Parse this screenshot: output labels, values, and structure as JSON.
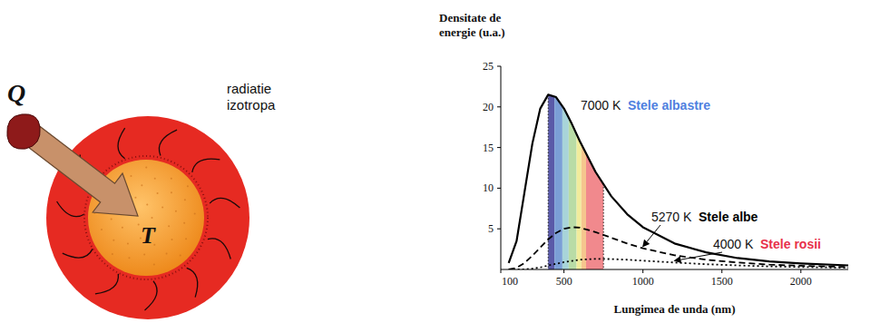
{
  "chart_data": {
    "type": "line",
    "y_label": "Densitate de energie (u.a.)",
    "x_label": "Lungimea de unda (nm)",
    "x": [
      150,
      200,
      250,
      300,
      350,
      400,
      450,
      500,
      550,
      600,
      700,
      800,
      900,
      1000,
      1200,
      1400,
      1600,
      1800,
      2000,
      2300
    ],
    "series": [
      {
        "name": "7000 K",
        "color": "#000000",
        "line_style": "solid",
        "values": [
          0.8,
          3.5,
          9.5,
          15.5,
          19.8,
          21.5,
          21.2,
          19.8,
          17.9,
          15.8,
          12.0,
          9.0,
          6.8,
          5.2,
          3.2,
          2.1,
          1.4,
          1.0,
          0.75,
          0.5
        ]
      },
      {
        "name": "5270 K",
        "color": "#000000",
        "line_style": "dashed",
        "values": [
          0,
          0.2,
          0.8,
          1.7,
          2.7,
          3.7,
          4.5,
          5.0,
          5.2,
          5.15,
          4.6,
          3.9,
          3.2,
          2.6,
          1.75,
          1.2,
          0.85,
          0.6,
          0.45,
          0.3
        ]
      },
      {
        "name": "4000 K",
        "color": "#000000",
        "line_style": "dotted",
        "values": [
          0,
          0,
          0.02,
          0.1,
          0.25,
          0.5,
          0.7,
          0.9,
          1.05,
          1.2,
          1.3,
          1.28,
          1.2,
          1.08,
          0.85,
          0.65,
          0.5,
          0.38,
          0.3,
          0.22
        ]
      }
    ],
    "annotations": [
      {
        "text": "Stele albastre",
        "color": "#4f7fe0"
      },
      {
        "text": "Stele albe",
        "color": "#000000"
      },
      {
        "text": "Stele rosii",
        "color": "#e8304a"
      }
    ],
    "visible_band": {
      "edges": [
        400,
        440,
        490,
        530,
        580,
        610,
        640,
        750
      ],
      "colors": [
        "#5a5aa8",
        "#7b9fd6",
        "#a8d4d9",
        "#b9dca6",
        "#f1ec9c",
        "#f5c68e",
        "#f1898d"
      ]
    },
    "xlim": [
      100,
      2300
    ],
    "xticks": [
      100,
      500,
      1000,
      1500,
      2000
    ],
    "ylim": [
      0,
      25
    ],
    "yticks": [
      5,
      10,
      15,
      20,
      25
    ],
    "grid": false
  },
  "diagram": {
    "heat_label": "Q",
    "temperature_label": "T",
    "radiation_label": "radiatie izotropa"
  }
}
